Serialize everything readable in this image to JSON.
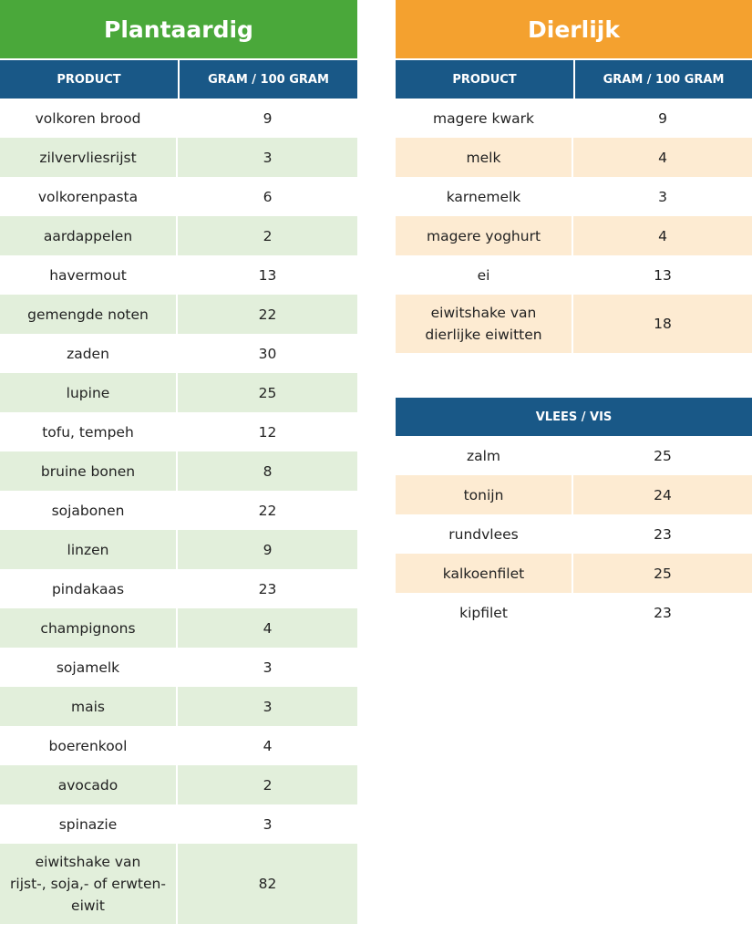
{
  "left": {
    "title": "Plantaardig",
    "columns": [
      "PRODUCT",
      "GRAM / 100 GRAM"
    ],
    "rows": [
      [
        "volkoren brood",
        9
      ],
      [
        "zilvervliesrijst",
        3
      ],
      [
        "volkorenpasta",
        6
      ],
      [
        "aardappelen",
        2
      ],
      [
        "havermout",
        13
      ],
      [
        "gemengde noten",
        22
      ],
      [
        "zaden",
        30
      ],
      [
        "lupine",
        25
      ],
      [
        "tofu, tempeh",
        12
      ],
      [
        "bruine bonen",
        8
      ],
      [
        "sojabonen",
        22
      ],
      [
        "linzen",
        9
      ],
      [
        "pindakaas",
        23
      ],
      [
        "champignons",
        4
      ],
      [
        "sojamelk",
        3
      ],
      [
        "mais",
        3
      ],
      [
        "boerenkool",
        4
      ],
      [
        "avocado",
        2
      ],
      [
        "spinazie",
        3
      ],
      [
        "eiwitshake van\nrijst-, soja,- of erwten-\neiwit",
        82
      ]
    ]
  },
  "right": {
    "title": "Dierlijk",
    "columns": [
      "PRODUCT",
      "GRAM / 100 GRAM"
    ],
    "rows": [
      [
        "magere kwark",
        9
      ],
      [
        "melk",
        4
      ],
      [
        "karnemelk",
        3
      ],
      [
        "magere yoghurt",
        4
      ],
      [
        "ei",
        13
      ],
      [
        "eiwitshake van\ndierlijke eiwitten",
        18
      ]
    ],
    "section": {
      "title": "VLEES / VIS",
      "rows": [
        [
          "zalm",
          25
        ],
        [
          "tonijn",
          24
        ],
        [
          "rundvlees",
          23
        ],
        [
          "kalkoenfilet",
          25
        ],
        [
          "kipfilet",
          23
        ]
      ]
    }
  }
}
